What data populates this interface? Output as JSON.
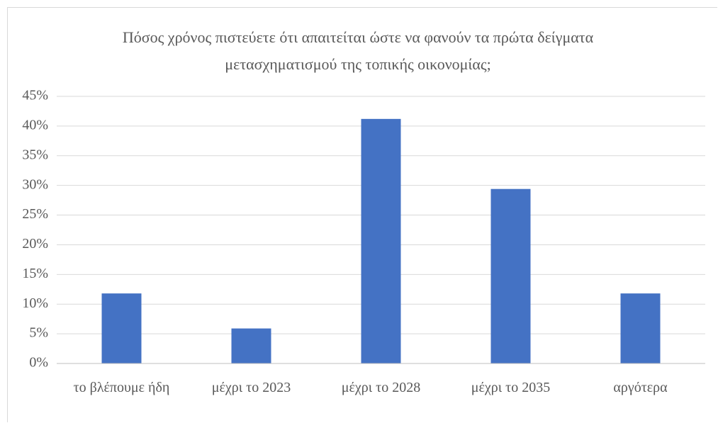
{
  "chart_data": {
    "type": "bar",
    "title": "Πόσος χρόνος πιστεύετε ότι απαιτείται ώστε να φανούν τα πρώτα δείγματα μετασχηματισμού  της τοπικής οικονομίας;",
    "categories": [
      "το βλέπουμε ήδη",
      "μέχρι το 2023",
      "μέχρι το 2028",
      "μέχρι το 2035",
      "αργότερα"
    ],
    "values": [
      11.8,
      5.9,
      41.2,
      29.4,
      11.8
    ],
    "color": "#4472c4",
    "ylim": [
      0,
      45
    ],
    "yticks": [
      {
        "value": 0,
        "label": "0%"
      },
      {
        "value": 5,
        "label": "5%"
      },
      {
        "value": 10,
        "label": "10%"
      },
      {
        "value": 15,
        "label": "15%"
      },
      {
        "value": 20,
        "label": "20%"
      },
      {
        "value": 25,
        "label": "25%"
      },
      {
        "value": 30,
        "label": "30%"
      },
      {
        "value": 35,
        "label": "35%"
      },
      {
        "value": 40,
        "label": "40%"
      },
      {
        "value": 45,
        "label": "45%"
      }
    ],
    "grid": true
  }
}
